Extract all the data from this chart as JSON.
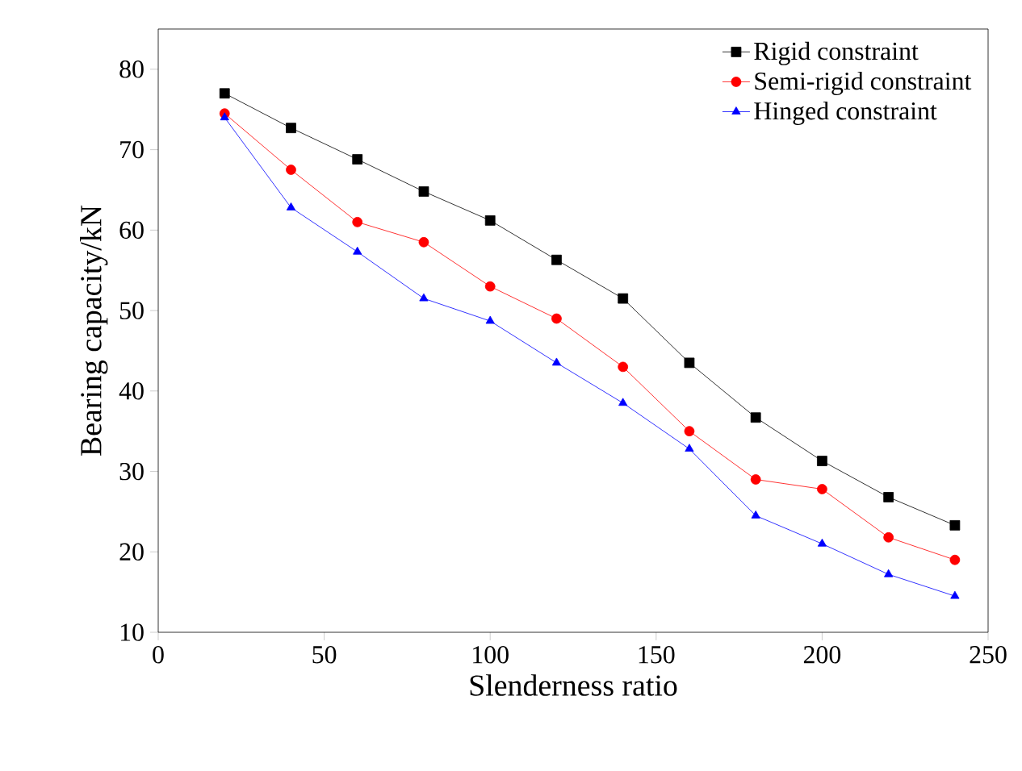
{
  "chart_data": {
    "type": "line",
    "xlabel": "Slenderness ratio",
    "ylabel": "Bearing capacity/kN",
    "x": [
      20,
      40,
      60,
      80,
      100,
      120,
      140,
      160,
      180,
      200,
      220,
      240
    ],
    "series": [
      {
        "name": "Rigid constraint",
        "color": "#000000",
        "marker": "square",
        "values": [
          77,
          72.7,
          68.8,
          64.8,
          61.2,
          56.3,
          51.5,
          43.5,
          36.7,
          31.3,
          26.8,
          23.3
        ]
      },
      {
        "name": "Semi-rigid constraint",
        "color": "#ff0000",
        "marker": "circle",
        "values": [
          74.5,
          67.5,
          61,
          58.5,
          53,
          49,
          43,
          35,
          29,
          27.8,
          21.8,
          19
        ]
      },
      {
        "name": "Hinged constraint",
        "color": "#0000ff",
        "marker": "triangle",
        "values": [
          74,
          62.8,
          57.3,
          51.5,
          48.7,
          43.5,
          38.5,
          32.8,
          24.5,
          21,
          17.2,
          14.5
        ]
      }
    ],
    "xlim": [
      0,
      250
    ],
    "xticks": [
      0,
      50,
      100,
      150,
      200,
      250
    ],
    "ylim": [
      10,
      85
    ],
    "yticks": [
      10,
      20,
      30,
      40,
      50,
      60,
      70,
      80
    ],
    "legend": "top right",
    "grid": false,
    "line_style": "solid"
  }
}
